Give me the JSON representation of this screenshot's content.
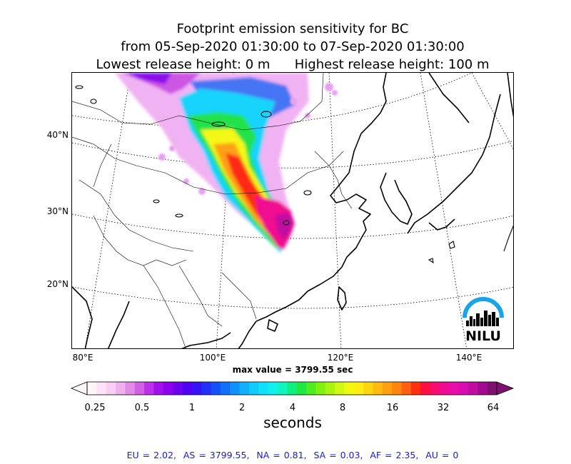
{
  "title": {
    "line1": "Footprint emission sensitivity for BC",
    "line2": "from 05-Sep-2020 01:30:00 to 07-Sep-2020 01:30:00",
    "line3": "Lowest release height: 0 m      Highest release height: 100 m"
  },
  "map": {
    "lat_labels": [
      "40°N",
      "30°N",
      "20°N"
    ],
    "lon_labels": [
      "80°E",
      "100°E",
      "120°E",
      "140°E"
    ],
    "max_value_text": "max value = 3799.55 sec",
    "logo_text": "NILU",
    "logo_color": "#1aa3e8"
  },
  "colorbar": {
    "tick_labels": [
      "0.25",
      "0.5",
      "1",
      "2",
      "4",
      "8",
      "16",
      "32",
      "64"
    ],
    "label": "seconds",
    "colors": [
      "#fff5fb",
      "#fde3f8",
      "#f9cdf4",
      "#f0b0ee",
      "#e28ae8",
      "#d060e4",
      "#bb30e8",
      "#a010ec",
      "#8c00ee",
      "#6e00f0",
      "#5000f2",
      "#3414f4",
      "#2030f6",
      "#1450f8",
      "#1070fa",
      "#1090fb",
      "#10b0fc",
      "#10ccfd",
      "#10e0fc",
      "#10f0ec",
      "#10f4c0",
      "#10f080",
      "#20e840",
      "#50ec20",
      "#80f010",
      "#a8f410",
      "#d0f810",
      "#f0fa10",
      "#ffee10",
      "#ffd410",
      "#ffbb10",
      "#ffa010",
      "#ff8410",
      "#ff6010",
      "#ff3010",
      "#ff1040",
      "#f80c70",
      "#f00c90",
      "#e80ca8",
      "#d80cb0",
      "#c00ca0",
      "#a00c90",
      "#801070"
    ]
  },
  "region_values": "EU = 2.02,  AS = 3799.55,  NA = 0.81,  SA = 0.03,  AF = 2.35,  AU = 0"
}
